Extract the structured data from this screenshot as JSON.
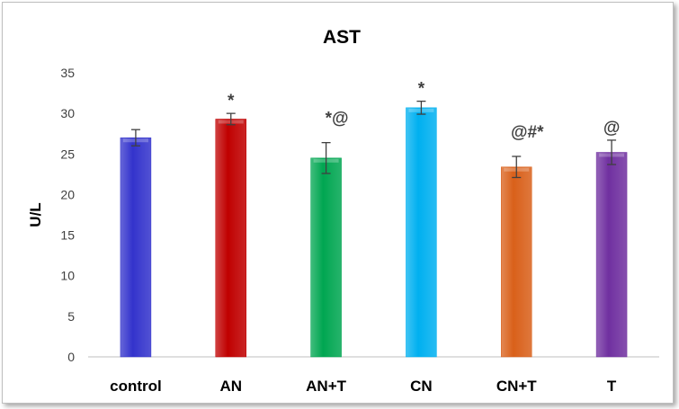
{
  "chart_data": {
    "type": "bar",
    "title": "AST",
    "xlabel": "",
    "ylabel": "U/L",
    "ylim": [
      0,
      35
    ],
    "yticks": [
      0,
      5,
      10,
      15,
      20,
      25,
      30,
      35
    ],
    "grid": false,
    "legend": "none",
    "categories": [
      "control",
      "AN",
      "AN+T",
      "CN",
      "CN+T",
      "T"
    ],
    "values": [
      27.0,
      29.3,
      24.5,
      30.7,
      23.4,
      25.2
    ],
    "error": [
      1.0,
      0.7,
      1.9,
      0.8,
      1.3,
      1.5
    ],
    "annotations": [
      "",
      "*",
      "*@",
      "*",
      "@#*",
      "@"
    ],
    "colors": [
      "#3333cc",
      "#c00000",
      "#00a651",
      "#00b0f0",
      "#d9601a",
      "#7030a0"
    ]
  }
}
